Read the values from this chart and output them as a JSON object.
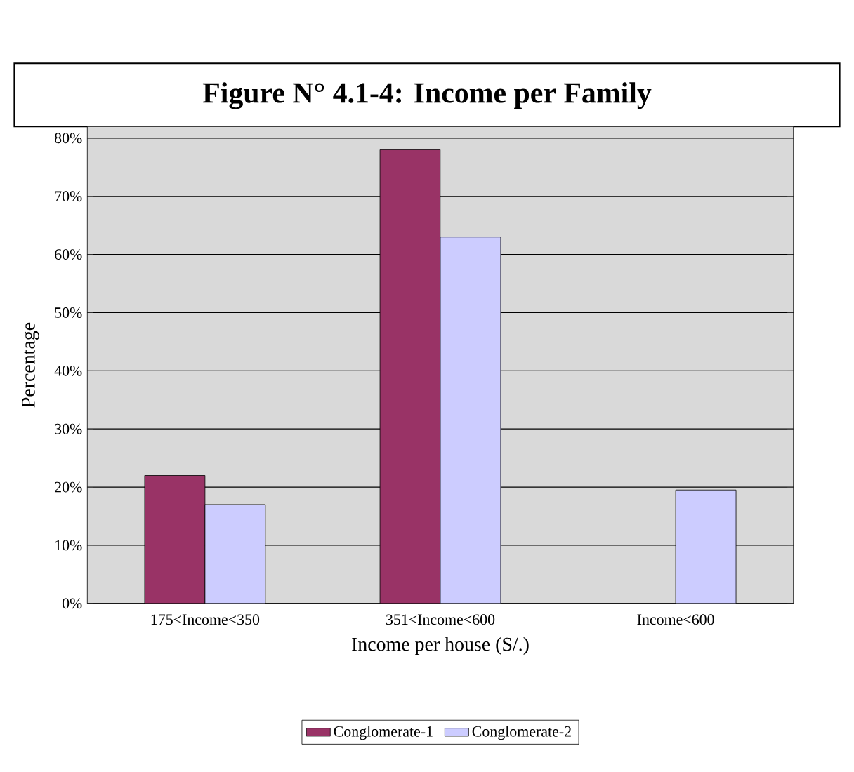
{
  "chart_data": {
    "type": "bar",
    "title": "Figure N° 4.1-4: Income per Family",
    "xlabel": "Income per house (S/.)",
    "ylabel": "Percentage",
    "categories": [
      "175<Income<350",
      "351<Income<600",
      "Income<600"
    ],
    "series": [
      {
        "name": "Conglomerate-1",
        "color": "#993366",
        "values": [
          22,
          78,
          null
        ]
      },
      {
        "name": "Conglomerate-2",
        "color": "#ccccff",
        "values": [
          17,
          63,
          19.5
        ]
      }
    ],
    "ylim": [
      0,
      82
    ],
    "yticks": [
      {
        "value": 0,
        "label": "0%"
      },
      {
        "value": 10,
        "label": "10%"
      },
      {
        "value": 20,
        "label": "20%"
      },
      {
        "value": 30,
        "label": "30%"
      },
      {
        "value": 40,
        "label": "40%"
      },
      {
        "value": 50,
        "label": "50%"
      },
      {
        "value": 60,
        "label": "60%"
      },
      {
        "value": 70,
        "label": "70%"
      },
      {
        "value": 80,
        "label": "80%"
      }
    ],
    "grid": "y",
    "legend": "bottom"
  }
}
